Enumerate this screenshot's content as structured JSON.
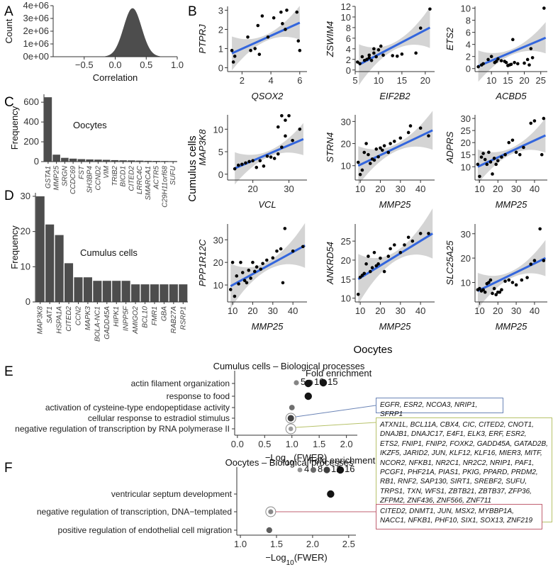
{
  "panel_letters": {
    "A": "A",
    "B": "B",
    "C": "C",
    "D": "D",
    "E": "E",
    "F": "F"
  },
  "colors": {
    "bar": "#4d4d4d",
    "fit": "#3366dd",
    "band": "#cccccc",
    "boxE1": "#6b84b6",
    "boxE2": "#b7c26a",
    "boxF": "#c06070"
  },
  "shared_labels": {
    "cumulus_ylabel": "Cumulus cells",
    "oocytes_xlabel": "Oocytes"
  },
  "chart_data": [
    {
      "id": "A",
      "type": "area",
      "title": "",
      "xlabel": "Correlation",
      "ylabel": "Count",
      "xlim": [
        -1.0,
        1.0
      ],
      "ylim": [
        0,
        4000000
      ],
      "x_ticks": [
        -0.5,
        0.0,
        0.5,
        1.0
      ],
      "x_tick_labels": [
        "−0.5",
        "0.0",
        "0.5",
        "1.0"
      ],
      "y_ticks": [
        0,
        1000000,
        2000000,
        3000000,
        4000000
      ],
      "y_tick_labels": [
        "0e+00",
        "1e+06",
        "2e+06",
        "3e+06",
        "4e+06"
      ],
      "distribution": {
        "peak_x": 0.28,
        "peak_count": 3800000,
        "sd": 0.145
      }
    },
    {
      "id": "C",
      "type": "bar",
      "title": "Oocytes",
      "xlabel": "",
      "ylabel": "Frequency",
      "ylim": [
        0,
        680
      ],
      "y_ticks": [
        0,
        200,
        400,
        600
      ],
      "categories": [
        "GSTA1",
        "MMP25",
        "SRGN",
        "CCDC69",
        "FST",
        "SH3BP4",
        "CCND2",
        "VIM",
        "TRIB2",
        "BICD1",
        "CITED2",
        "LRRC4C",
        "SMARCA1",
        "ACTR5",
        "C29H11orf68",
        "SUFU"
      ],
      "values": [
        650,
        70,
        38,
        30,
        25,
        22,
        20,
        18,
        15,
        13,
        12,
        10,
        8,
        7,
        6,
        5
      ]
    },
    {
      "id": "D",
      "type": "bar",
      "title": "Cumulus cells",
      "xlabel": "",
      "ylabel": "Frequency",
      "ylim": [
        0,
        31
      ],
      "y_ticks": [
        0,
        10,
        20,
        30
      ],
      "categories": [
        "MAP3K8",
        "SAT1",
        "HSPA1A",
        "CITED2",
        "CCN2",
        "MAPK3",
        "BOLA-NC1",
        "GADD45A",
        "HIPK1",
        "INPP5F",
        "AMIGO2",
        "BCL10",
        "FMR1",
        "GBA",
        "RAB27A",
        "RSRP1"
      ],
      "values": [
        30,
        22,
        19,
        11,
        7,
        7,
        6,
        6,
        6,
        6,
        5,
        5,
        5,
        5,
        5,
        5
      ]
    },
    {
      "id": "B1",
      "type": "scatter",
      "xlabel": "QSOX2",
      "ylabel": "PTPRJ",
      "xlim": [
        1,
        6.5
      ],
      "ylim": [
        -0.2,
        3.2
      ],
      "x_ticks": [
        2,
        4,
        6
      ],
      "y_ticks": [
        0,
        1,
        2,
        3
      ],
      "fit": {
        "x0": 1.3,
        "y0": 0.75,
        "x1": 6.0,
        "y1": 2.35
      },
      "points": [
        [
          1.3,
          0.9
        ],
        [
          1.4,
          0.3
        ],
        [
          1.5,
          0.6
        ],
        [
          2.4,
          1.6
        ],
        [
          2.6,
          0.9
        ],
        [
          2.9,
          1.0
        ],
        [
          3.1,
          2.2
        ],
        [
          3.2,
          0.7
        ],
        [
          3.4,
          2.7
        ],
        [
          3.8,
          1.6
        ],
        [
          4.2,
          2.6
        ],
        [
          4.7,
          2.9
        ],
        [
          4.8,
          2.3
        ],
        [
          5.0,
          2.0
        ],
        [
          5.1,
          3.0
        ],
        [
          5.8,
          2.9
        ],
        [
          5.9,
          1.4
        ],
        [
          6.0,
          0.9
        ]
      ]
    },
    {
      "id": "B2",
      "type": "scatter",
      "xlabel": "EIF2B2",
      "ylabel": "ZSWIM4",
      "xlim": [
        5,
        22
      ],
      "ylim": [
        -0.3,
        12
      ],
      "x_ticks": [
        5,
        10,
        15,
        20
      ],
      "y_ticks": [
        0,
        2,
        4,
        6,
        8,
        10,
        12
      ],
      "fit": {
        "x0": 5.8,
        "y0": 1.0,
        "x1": 21,
        "y1": 8.0
      },
      "points": [
        [
          5.5,
          1.5
        ],
        [
          6,
          1.2
        ],
        [
          6.5,
          2.5
        ],
        [
          7,
          1.8
        ],
        [
          7.5,
          2.0
        ],
        [
          8,
          2.3
        ],
        [
          8,
          2.8
        ],
        [
          8.5,
          1.8
        ],
        [
          9,
          4.0
        ],
        [
          9,
          3.2
        ],
        [
          9.5,
          2.5
        ],
        [
          10,
          3.8
        ],
        [
          10.5,
          4.5
        ],
        [
          11,
          2.8
        ],
        [
          13,
          2.7
        ],
        [
          14,
          2.6
        ],
        [
          15,
          3.0
        ],
        [
          18,
          3.2
        ],
        [
          19,
          7.9
        ],
        [
          21,
          11.5
        ]
      ]
    },
    {
      "id": "B3",
      "type": "scatter",
      "xlabel": "ACBD5",
      "ylabel": "ETS2",
      "xlim": [
        5,
        27
      ],
      "ylim": [
        -0.5,
        10.3
      ],
      "x_ticks": [
        10,
        15,
        20,
        25
      ],
      "y_ticks": [
        0,
        2,
        4,
        6,
        8,
        10
      ],
      "fit": {
        "x0": 6,
        "y0": 0.4,
        "x1": 26.5,
        "y1": 5.1
      },
      "points": [
        [
          6,
          0.3
        ],
        [
          7,
          0.6
        ],
        [
          7.5,
          0.8
        ],
        [
          9,
          1.5
        ],
        [
          10,
          2.0
        ],
        [
          11,
          1.0
        ],
        [
          11.5,
          1.2
        ],
        [
          12,
          1.6
        ],
        [
          13,
          1.3
        ],
        [
          14,
          1.2
        ],
        [
          14.5,
          1.0
        ],
        [
          15,
          0.5
        ],
        [
          15.5,
          0.6
        ],
        [
          16,
          0.7
        ],
        [
          16.5,
          4.8
        ],
        [
          17,
          1.0
        ],
        [
          18,
          0.8
        ],
        [
          20,
          0.9
        ],
        [
          21,
          1.5
        ],
        [
          21.5,
          0.6
        ],
        [
          22,
          3.3
        ],
        [
          22.5,
          1.8
        ],
        [
          26,
          10.0
        ]
      ]
    },
    {
      "id": "B4",
      "type": "scatter",
      "xlabel": "VCL",
      "ylabel": "MAP3K8",
      "xlim": [
        13,
        35
      ],
      "ylim": [
        -1.3,
        13.2
      ],
      "x_ticks": [
        20,
        30
      ],
      "y_ticks": [
        0,
        5,
        10
      ],
      "fit": {
        "x0": 15,
        "y0": 1.3,
        "x1": 34,
        "y1": 7.8
      },
      "points": [
        [
          15,
          1.2
        ],
        [
          16,
          2.0
        ],
        [
          17,
          2.2
        ],
        [
          18,
          2.5
        ],
        [
          19,
          2.8
        ],
        [
          20,
          3.0
        ],
        [
          21,
          1.5
        ],
        [
          22,
          3.0
        ],
        [
          23,
          1.8
        ],
        [
          24,
          4.0
        ],
        [
          25,
          3.8
        ],
        [
          26,
          3.5
        ],
        [
          27,
          4.5
        ],
        [
          27,
          10.5
        ],
        [
          28,
          6.0
        ],
        [
          28,
          13.0
        ],
        [
          29,
          8.5
        ],
        [
          29,
          12.0
        ],
        [
          30,
          13.0
        ],
        [
          31,
          7.5
        ],
        [
          33,
          10.0
        ]
      ]
    },
    {
      "id": "B5",
      "type": "scatter",
      "xlabel": "MMP25",
      "ylabel": "STRN4",
      "xlim": [
        7.5,
        47
      ],
      "ylim": [
        3.5,
        33
      ],
      "x_ticks": [
        10,
        20,
        30,
        40
      ],
      "y_ticks": [
        10,
        20,
        30
      ],
      "fit": {
        "x0": 9,
        "y0": 10.0,
        "x1": 46,
        "y1": 26.0
      },
      "points": [
        [
          9,
          11.5
        ],
        [
          10,
          6.0
        ],
        [
          11,
          8.0
        ],
        [
          12,
          16.0
        ],
        [
          13,
          20.0
        ],
        [
          14,
          15.0
        ],
        [
          15,
          11.0
        ],
        [
          16,
          13.0
        ],
        [
          17,
          12.5
        ],
        [
          18,
          17.5
        ],
        [
          19,
          14.0
        ],
        [
          20,
          18.0
        ],
        [
          21,
          17.0
        ],
        [
          22,
          19.0
        ],
        [
          24,
          16.0
        ],
        [
          25,
          20.0
        ],
        [
          27,
          21.0
        ],
        [
          30,
          22.5
        ],
        [
          34,
          25.0
        ],
        [
          35,
          28.0
        ],
        [
          40,
          27.0
        ],
        [
          44,
          23.5
        ]
      ]
    },
    {
      "id": "B6",
      "type": "scatter",
      "xlabel": "MMP25",
      "ylabel": "ADPRS",
      "xlim": [
        7.5,
        47
      ],
      "ylim": [
        4.5,
        31.5
      ],
      "x_ticks": [
        10,
        20,
        30,
        40
      ],
      "y_ticks": [
        10,
        15,
        20,
        25,
        30
      ],
      "fit": {
        "x0": 9,
        "y0": 10.0,
        "x1": 46,
        "y1": 23.0
      },
      "points": [
        [
          9,
          11.0
        ],
        [
          10,
          6.0
        ],
        [
          11,
          14.0
        ],
        [
          12,
          15.5
        ],
        [
          13,
          13.0
        ],
        [
          14,
          11.0
        ],
        [
          15,
          16.0
        ],
        [
          16,
          12.0
        ],
        [
          17,
          7.0
        ],
        [
          18,
          13.5
        ],
        [
          19,
          11.0
        ],
        [
          20,
          12.5
        ],
        [
          22,
          14.0
        ],
        [
          24,
          15.0
        ],
        [
          26,
          20.0
        ],
        [
          28,
          21.0
        ],
        [
          30,
          16.0
        ],
        [
          32,
          15.0
        ],
        [
          34,
          18.0
        ],
        [
          38,
          28.0
        ],
        [
          40,
          29.0
        ],
        [
          44,
          15.0
        ],
        [
          45,
          30.0
        ]
      ]
    },
    {
      "id": "B7",
      "type": "scatter",
      "xlabel": "MMP25",
      "ylabel": "PPP1R12C",
      "xlim": [
        7.5,
        47
      ],
      "ylim": [
        2.5,
        37
      ],
      "x_ticks": [
        10,
        20,
        30,
        40
      ],
      "y_ticks": [
        10,
        20,
        30
      ],
      "fit": {
        "x0": 9,
        "y0": 9.5,
        "x1": 46,
        "y1": 27.5
      },
      "points": [
        [
          9,
          8.0
        ],
        [
          10,
          20.0
        ],
        [
          11,
          5.0
        ],
        [
          12,
          14.0
        ],
        [
          13,
          10.5
        ],
        [
          14,
          20.0
        ],
        [
          15,
          15.5
        ],
        [
          16,
          12.0
        ],
        [
          17,
          11.0
        ],
        [
          18,
          16.5
        ],
        [
          19,
          13.0
        ],
        [
          20,
          20.0
        ],
        [
          21,
          16.0
        ],
        [
          22,
          18.0
        ],
        [
          24,
          17.0
        ],
        [
          25,
          19.5
        ],
        [
          27,
          21.0
        ],
        [
          30,
          22.0
        ],
        [
          32,
          25.0
        ],
        [
          34,
          26.0
        ],
        [
          35,
          11.0
        ],
        [
          36,
          35.0
        ],
        [
          40,
          25.0
        ],
        [
          45,
          27.0
        ]
      ]
    },
    {
      "id": "B8",
      "type": "scatter",
      "xlabel": "MMP25",
      "ylabel": "ANKRD54",
      "xlim": [
        7.5,
        47
      ],
      "ylim": [
        9,
        29.5
      ],
      "x_ticks": [
        10,
        20,
        30,
        40
      ],
      "y_ticks": [
        10,
        15,
        20,
        25
      ],
      "fit": {
        "x0": 9,
        "y0": 15.0,
        "x1": 46,
        "y1": 27.0
      },
      "points": [
        [
          9,
          11.0
        ],
        [
          10,
          15.5
        ],
        [
          11,
          16.0
        ],
        [
          12,
          16.5
        ],
        [
          13,
          19.0
        ],
        [
          14,
          21.0
        ],
        [
          15,
          17.0
        ],
        [
          16,
          18.0
        ],
        [
          17,
          22.0
        ],
        [
          18,
          18.5
        ],
        [
          19,
          19.0
        ],
        [
          20,
          20.5
        ],
        [
          22,
          17.0
        ],
        [
          24,
          21.0
        ],
        [
          25,
          23.0
        ],
        [
          27,
          24.0
        ],
        [
          30,
          22.0
        ],
        [
          32,
          24.0
        ],
        [
          34,
          26.0
        ],
        [
          36,
          25.0
        ],
        [
          40,
          27.0
        ],
        [
          44,
          27.0
        ]
      ]
    },
    {
      "id": "B9",
      "type": "scatter",
      "xlabel": "MMP25",
      "ylabel": "SLC25A25",
      "xlim": [
        7.5,
        47
      ],
      "ylim": [
        2,
        34
      ],
      "x_ticks": [
        10,
        20,
        30,
        40
      ],
      "y_ticks": [
        10,
        20,
        30
      ],
      "fit": {
        "x0": 9,
        "y0": 6.5,
        "x1": 46,
        "y1": 20.0
      },
      "points": [
        [
          9,
          7.0
        ],
        [
          10,
          7.5
        ],
        [
          11,
          6.5
        ],
        [
          12,
          7.0
        ],
        [
          13,
          6.0
        ],
        [
          14,
          9.5
        ],
        [
          15,
          10.0
        ],
        [
          16,
          11.0
        ],
        [
          17,
          5.5
        ],
        [
          18,
          7.5
        ],
        [
          19,
          5.0
        ],
        [
          20,
          6.0
        ],
        [
          21,
          6.0
        ],
        [
          22,
          7.0
        ],
        [
          24,
          10.5
        ],
        [
          26,
          11.0
        ],
        [
          28,
          10.0
        ],
        [
          30,
          9.0
        ],
        [
          33,
          11.0
        ],
        [
          36,
          12.0
        ],
        [
          38,
          17.5
        ],
        [
          40,
          19.0
        ],
        [
          43,
          32.0
        ],
        [
          45,
          19.0
        ]
      ]
    },
    {
      "id": "E",
      "type": "scatter",
      "title": "Cumulus cells – Biological processes",
      "xlabel": "−Log10(FWER)",
      "xlim": [
        -0.05,
        2.2
      ],
      "x_ticks": [
        0.0,
        0.5,
        1.0,
        1.5,
        2.0
      ],
      "x_tick_labels": [
        "0.0",
        "0.5",
        "1.0",
        "1.5",
        "2.0"
      ],
      "legend_title": "Fold enrichment",
      "legend_values": [
        5,
        10,
        15
      ],
      "categories": [
        "actin filament organization",
        "response to food",
        "activation of cysteine-type endopeptidase activity",
        "cellular response to estradiol stimulus",
        "negative regulation of transcription by RNA polymerase II"
      ],
      "values": [
        1.3,
        1.3,
        1.0,
        0.98,
        0.98
      ],
      "fold_enrichment": [
        15,
        16,
        7,
        11,
        3
      ]
    },
    {
      "id": "F",
      "type": "scatter",
      "title": "Oocytes – Biological processes",
      "xlabel": "−Log10(FWER)",
      "xlim": [
        0.95,
        2.6
      ],
      "x_ticks": [
        1.0,
        1.5,
        2.0,
        2.5
      ],
      "x_tick_labels": [
        "1.0",
        "1.5",
        "2.0",
        "2.5"
      ],
      "legend_title": "Fold enrichment",
      "legend_values": [
        4,
        8,
        12,
        16
      ],
      "categories": [
        "ventricular septum development",
        "negative regulation of transcription, DNA−templated",
        "positive regulation of endothelial cell migration"
      ],
      "values": [
        2.25,
        1.42,
        1.4
      ],
      "fold_enrichment": [
        16,
        5,
        9
      ]
    }
  ],
  "gene_boxes": {
    "E1": "EGFR, ESR2, NCOA3, NRIP1, SFRP1",
    "E2": "ATXN1L, BCL11A, CBX4, CIC, CITED2, CNOT1, DNAJB1, DNAJC17, E4F1, ELK3, ERF, ESR2, ETS2, FNIP1, FNIP2, FOXK2, GADD45A, GATAD2B, IKZF5, JARID2, JUN, KLF12, KLF16, MIER3, MITF, NCOR2, NFKB1, NR2C1, NR2C2, NRIP1, PAF1, PCGF1, PHF21A, PIAS1, PKIG, PPARD, PRDM2, RB1, RNF2, SAP130, SIRT1, SREBF2, SUFU, TRPS1, TXN, WFS1, ZBTB21, ZBTB37, ZFP36, ZFPM2, ZNF436, ZNF566, ZNF711",
    "F1": "CITED2, DNMT1, JUN, MSX2, MYBBP1A, NACC1, NFKB1, PHF10, SIX1, SOX13, ZNF219"
  }
}
